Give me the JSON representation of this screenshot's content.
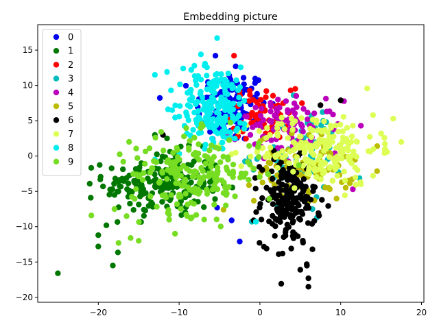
{
  "chart_data": {
    "type": "scatter",
    "title": "Embedding picture",
    "xlabel": "",
    "ylabel": "",
    "xlim": [
      -27.5,
      20.3
    ],
    "ylim": [
      -20.7,
      18.6
    ],
    "xticks": [
      -20,
      -10,
      0,
      10,
      20
    ],
    "yticks": [
      -20,
      -15,
      -10,
      -5,
      0,
      5,
      10,
      15
    ],
    "grid": false,
    "legend_position": "top-left",
    "series": [
      {
        "name": "0",
        "color": "#0000ee",
        "center": [
          -3.5,
          7.0
        ],
        "spread": [
          2.2,
          2.6
        ],
        "count": 120,
        "extra": [
          [
            -5.5,
            14.2
          ],
          [
            -3.0,
            12.7
          ],
          [
            -3.5,
            -9.1
          ],
          [
            -2.5,
            -12.1
          ],
          [
            -5.3,
            -7.3
          ],
          [
            -4.0,
            10.5
          ]
        ]
      },
      {
        "name": "1",
        "color": "#007700",
        "center": [
          -12.0,
          -4.0
        ],
        "spread": [
          3.6,
          2.3
        ],
        "count": 190,
        "extra": [
          [
            -25.0,
            -16.6
          ],
          [
            -20.0,
            -11.2
          ],
          [
            -20.0,
            -12.8
          ],
          [
            -18.2,
            -15.5
          ],
          [
            -19.0,
            -9.8
          ],
          [
            -18.0,
            -5.5
          ],
          [
            -16.5,
            -3.1
          ],
          [
            -13.0,
            3.0
          ],
          [
            -11.5,
            2.5
          ]
        ]
      },
      {
        "name": "2",
        "color": "#ff0000",
        "center": [
          0.5,
          6.0
        ],
        "spread": [
          2.0,
          1.8
        ],
        "count": 60,
        "extra": [
          [
            -3.2,
            14.2
          ],
          [
            0.8,
            9.2
          ],
          [
            3.8,
            9.3
          ]
        ]
      },
      {
        "name": "3",
        "color": "#00bbbb",
        "center": [
          4.5,
          0.5
        ],
        "spread": [
          2.8,
          3.2
        ],
        "count": 60,
        "extra": [
          [
            -1.0,
            -9.3
          ],
          [
            7.0,
            -5.8
          ],
          [
            6.5,
            -7.5
          ]
        ]
      },
      {
        "name": "4",
        "color": "#bb00bb",
        "center": [
          3.5,
          4.2
        ],
        "spread": [
          3.2,
          1.8
        ],
        "count": 90,
        "extra": [
          [
            4.5,
            8.5
          ],
          [
            12.5,
            4.3
          ],
          [
            11.5,
            -4.7
          ]
        ]
      },
      {
        "name": "5",
        "color": "#bbbb00",
        "center": [
          5.5,
          -1.8
        ],
        "spread": [
          3.0,
          2.4
        ],
        "count": 90,
        "extra": [
          [
            8.5,
            -4.5
          ],
          [
            9.0,
            -3.5
          ],
          [
            -4.5,
            -7.6
          ],
          [
            11.0,
            -3.5
          ]
        ]
      },
      {
        "name": "6",
        "color": "#000000",
        "center": [
          3.5,
          -6.5
        ],
        "spread": [
          1.7,
          3.0
        ],
        "count": 190,
        "extra": [
          [
            6.0,
            -18.5
          ],
          [
            6.0,
            -17.3
          ],
          [
            5.8,
            -15.3
          ],
          [
            5.0,
            -16.1
          ],
          [
            2.8,
            -13.8
          ],
          [
            10.0,
            7.9
          ],
          [
            7.5,
            7.2
          ],
          [
            -12.0,
            3.0
          ],
          [
            6.5,
            -13.2
          ]
        ]
      },
      {
        "name": "7",
        "color": "#ddff55",
        "center": [
          7.0,
          1.0
        ],
        "spread": [
          3.8,
          2.5
        ],
        "count": 200,
        "extra": [
          [
            16.5,
            5.3
          ],
          [
            17.5,
            2.0
          ],
          [
            15.5,
            1.0
          ],
          [
            14.0,
            5.8
          ],
          [
            14.0,
            -2.8
          ],
          [
            12.5,
            -4.0
          ],
          [
            11.5,
            4.3
          ],
          [
            15.0,
            3.2
          ]
        ]
      },
      {
        "name": "8",
        "color": "#00eeee",
        "center": [
          -5.5,
          7.0
        ],
        "spread": [
          2.2,
          2.8
        ],
        "count": 190,
        "extra": [
          [
            -5.3,
            16.7
          ],
          [
            -7.3,
            14.4
          ],
          [
            -13.0,
            11.5
          ],
          [
            -11.5,
            11.9
          ],
          [
            -9.5,
            12.4
          ],
          [
            -8.5,
            12.2
          ],
          [
            -11.0,
            9.3
          ],
          [
            -13.0,
            -0.5
          ],
          [
            -0.5,
            -9.3
          ]
        ]
      },
      {
        "name": "9",
        "color": "#77dd22",
        "center": [
          -8.0,
          -2.5
        ],
        "spread": [
          4.0,
          2.8
        ],
        "count": 200,
        "extra": [
          [
            -17.5,
            -12.3
          ],
          [
            -16.0,
            -11.6
          ],
          [
            -15.0,
            -12.0
          ],
          [
            -10.5,
            -11.0
          ],
          [
            -16.5,
            -8.5
          ],
          [
            -18.0,
            -7.5
          ],
          [
            -9.0,
            -8.5
          ],
          [
            -6.0,
            1.5
          ]
        ]
      }
    ]
  }
}
